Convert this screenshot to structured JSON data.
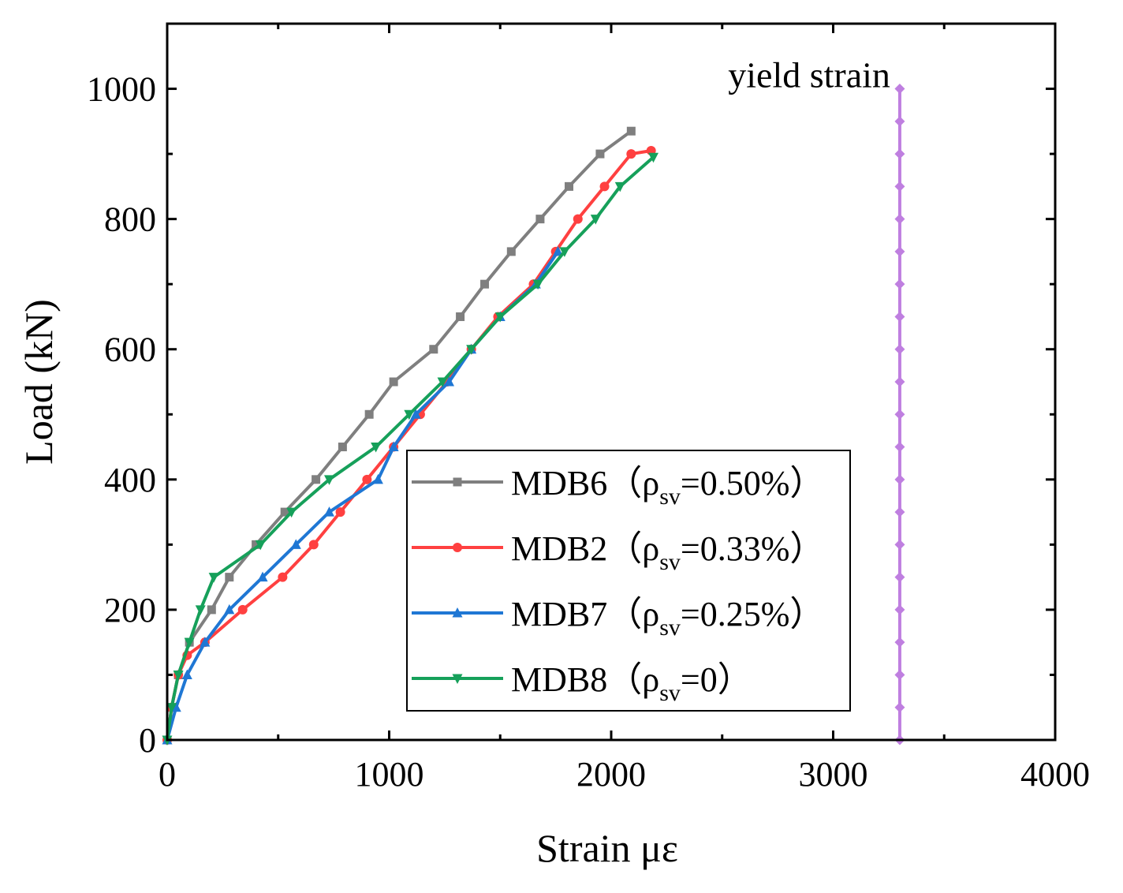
{
  "chart_data": {
    "type": "line",
    "xlabel": "Strain  με",
    "ylabel": "Load (kN)",
    "xlim": [
      0,
      4000
    ],
    "ylim": [
      0,
      1100
    ],
    "xticks": [
      0,
      1000,
      2000,
      3000,
      4000
    ],
    "yticks": [
      0,
      200,
      400,
      600,
      800,
      1000
    ],
    "xtick_labels": [
      "0",
      "1000",
      "2000",
      "3000",
      "4000"
    ],
    "ytick_labels": [
      "0",
      "200",
      "400",
      "600",
      "800",
      "1000"
    ],
    "grid": false,
    "legend_position": "center-right",
    "series": [
      {
        "name": "MDB6（ρsv=0.50%）",
        "legend_main": "MDB6（ρ",
        "legend_sub": "sv",
        "legend_tail": "=0.50%）",
        "color": "#7f7f7f",
        "marker": "square",
        "x": [
          0,
          20,
          50,
          100,
          200,
          280,
          400,
          530,
          670,
          790,
          910,
          1020,
          1200,
          1320,
          1430,
          1550,
          1680,
          1810,
          1950,
          2090
        ],
        "y": [
          0,
          50,
          100,
          150,
          200,
          250,
          300,
          350,
          400,
          450,
          500,
          550,
          600,
          650,
          700,
          750,
          800,
          850,
          900,
          935
        ]
      },
      {
        "name": "MDB2（ρsv=0.33%）",
        "legend_main": "MDB2（ρ",
        "legend_sub": "sv",
        "legend_tail": "=0.33%）",
        "color": "#ff4040",
        "marker": "circle",
        "x": [
          0,
          20,
          50,
          90,
          170,
          340,
          520,
          660,
          780,
          900,
          1020,
          1140,
          1260,
          1370,
          1490,
          1650,
          1750,
          1850,
          1970,
          2090,
          2180
        ],
        "y": [
          0,
          50,
          100,
          130,
          150,
          200,
          250,
          300,
          350,
          400,
          450,
          500,
          550,
          600,
          650,
          700,
          750,
          800,
          850,
          900,
          905
        ]
      },
      {
        "name": "MDB7（ρsv=0.25%）",
        "legend_main": "MDB7（ρ",
        "legend_sub": "sv",
        "legend_tail": "=0.25%）",
        "color": "#1f77d4",
        "marker": "triangle-up",
        "x": [
          0,
          40,
          90,
          170,
          280,
          430,
          580,
          730,
          950,
          1020,
          1120,
          1270,
          1370,
          1500,
          1660,
          1760
        ],
        "y": [
          0,
          50,
          100,
          150,
          200,
          250,
          300,
          350,
          400,
          450,
          500,
          550,
          600,
          650,
          700,
          750
        ]
      },
      {
        "name": "MDB8（ρsv=0）",
        "legend_main": "MDB8（ρ",
        "legend_sub": "sv",
        "legend_tail": "=0）",
        "color": "#16a05a",
        "marker": "triangle-down",
        "x": [
          0,
          20,
          50,
          100,
          150,
          210,
          420,
          560,
          730,
          940,
          1090,
          1240,
          1370,
          1500,
          1670,
          1790,
          1930,
          2040,
          2190
        ],
        "y": [
          0,
          50,
          100,
          150,
          200,
          250,
          300,
          350,
          400,
          450,
          500,
          550,
          600,
          650,
          700,
          750,
          800,
          850,
          895
        ]
      }
    ],
    "reference_line": {
      "name": "yield strain",
      "color": "#bf7fe0",
      "x": 3300,
      "y_from": 0,
      "y_to": 1000,
      "marker_step": 50,
      "label": "yield strain"
    }
  }
}
